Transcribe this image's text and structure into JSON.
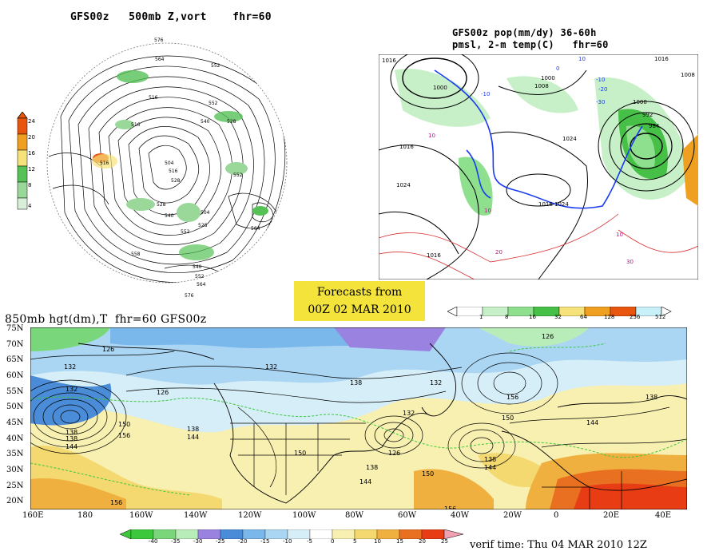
{
  "panel_500mb": {
    "title": "GFS00z   500mb Z,vort    fhr=60",
    "colorbar": {
      "labels": [
        "24",
        "20",
        "16",
        "12",
        "8",
        "4"
      ],
      "colors": [
        "#e8550f",
        "#f0a020",
        "#f6e27a",
        "#56c256",
        "#9ad89a",
        "#d8f0d8"
      ]
    },
    "contour_labels": [
      "576",
      "564",
      "552",
      "516",
      "540",
      "528",
      "552",
      "516",
      "504",
      "516",
      "528",
      "552",
      "516",
      "528",
      "540",
      "504",
      "552",
      "564",
      "528",
      "540",
      "552",
      "564",
      "576",
      "558"
    ]
  },
  "panel_precip": {
    "title_line1": "GFS00z pop(mm/dy) 36-60h",
    "title_line2": "pmsl, 2-m temp(C)   fhr=60",
    "isobar_labels": [
      "1016",
      "1000",
      "1008",
      "1016",
      "1024",
      "1024",
      "1016",
      "1016",
      "1024",
      "1000",
      "992",
      "984",
      "1008",
      "1016",
      "1000"
    ],
    "temp_labels": [
      "10",
      "0",
      "-10",
      "-20",
      "-30",
      "-10",
      "10",
      "10",
      "10",
      "20",
      "30"
    ],
    "colorbar": {
      "labels": [
        "1",
        "8",
        "16",
        "32",
        "64",
        "128",
        "256",
        "512"
      ],
      "colors": [
        "#ffffff",
        "#c8f0c8",
        "#8ee08e",
        "#46c046",
        "#f6e27a",
        "#f0a020",
        "#e8550f",
        "#c8f0f8",
        "#ffffff"
      ]
    }
  },
  "forecast_box": {
    "line1": "Forecasts from",
    "line2": "00Z 02 MAR 2010"
  },
  "panel_850mb": {
    "title": "850mb hgt(dm),T  fhr=60 GFS00z",
    "lat_labels": [
      "75N",
      "70N",
      "65N",
      "60N",
      "55N",
      "50N",
      "45N",
      "40N",
      "35N",
      "30N",
      "25N",
      "20N"
    ],
    "lon_labels": [
      "160E",
      "180",
      "160W",
      "140W",
      "120W",
      "100W",
      "80W",
      "60W",
      "40W",
      "20W",
      "0",
      "20E",
      "40E"
    ],
    "height_labels": [
      "132",
      "126",
      "132",
      "126",
      "138",
      "132",
      "138",
      "132",
      "138",
      "144",
      "150",
      "156",
      "138",
      "144",
      "150",
      "156",
      "138",
      "144",
      "150",
      "156",
      "126",
      "138",
      "144",
      "150",
      "156",
      "138",
      "144",
      "126",
      "132"
    ],
    "colorbar": {
      "labels": [
        "-40",
        "-35",
        "-30",
        "-25",
        "-20",
        "-15",
        "-10",
        "-5",
        "0",
        "5",
        "10",
        "15",
        "20",
        "25"
      ],
      "colors": [
        "#3cc83c",
        "#7ad67a",
        "#b8ecb8",
        "#9a82e0",
        "#4a8cd8",
        "#7ab8ec",
        "#aad6f4",
        "#d6eef8",
        "#ffffff",
        "#f8f0b0",
        "#f4d870",
        "#f0b040",
        "#e87020",
        "#e83c14",
        "#f0a0b0"
      ]
    },
    "verif_time": "verif time: Thu 04 MAR 2010 12Z"
  }
}
